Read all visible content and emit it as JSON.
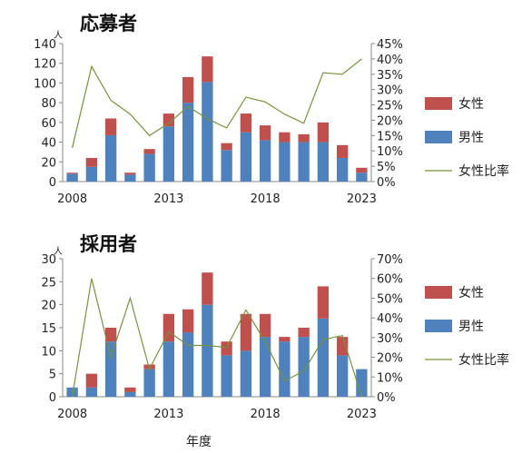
{
  "chart_data": [
    {
      "type": "bar",
      "stacked": true,
      "title": "応募者",
      "y_unit": "人",
      "x": [
        2008,
        2009,
        2010,
        2011,
        2012,
        2013,
        2014,
        2015,
        2016,
        2017,
        2018,
        2019,
        2020,
        2021,
        2022,
        2023
      ],
      "x_ticks": [
        2008,
        2013,
        2018,
        2023
      ],
      "ylim": [
        0,
        140
      ],
      "y_ticks": [
        0,
        20,
        40,
        60,
        80,
        100,
        120,
        140
      ],
      "y2lim": [
        0,
        0.45
      ],
      "y2_ticks": [
        "0%",
        "5%",
        "10%",
        "15%",
        "20%",
        "25%",
        "30%",
        "35%",
        "40%",
        "45%"
      ],
      "series": [
        {
          "name": "男性",
          "axis": "left",
          "values": [
            8,
            15,
            47,
            7,
            28,
            56,
            80,
            101,
            32,
            50,
            42,
            40,
            40,
            40,
            24,
            9
          ],
          "color": "#4f81bd"
        },
        {
          "name": "女性",
          "axis": "left",
          "values": [
            1,
            9,
            17,
            2,
            5,
            13,
            26,
            26,
            7,
            19,
            15,
            10,
            8,
            20,
            13,
            5
          ],
          "color": "#c0504d"
        },
        {
          "name": "女性比率",
          "axis": "right",
          "type": "line",
          "values": [
            0.11,
            0.375,
            0.265,
            0.22,
            0.15,
            0.19,
            0.245,
            0.205,
            0.175,
            0.275,
            0.26,
            0.22,
            0.19,
            0.355,
            0.35,
            0.4
          ],
          "color": "#77933c"
        }
      ]
    },
    {
      "type": "bar",
      "stacked": true,
      "title": "採用者",
      "y_unit": "人",
      "xlabel": "年度",
      "x": [
        2008,
        2009,
        2010,
        2011,
        2012,
        2013,
        2014,
        2015,
        2016,
        2017,
        2018,
        2019,
        2020,
        2021,
        2022,
        2023
      ],
      "x_ticks": [
        2008,
        2013,
        2018,
        2023
      ],
      "ylim": [
        0,
        30
      ],
      "y_ticks": [
        0,
        5,
        10,
        15,
        20,
        25,
        30
      ],
      "y2lim": [
        0,
        0.7
      ],
      "y2_ticks": [
        "0%",
        "10%",
        "20%",
        "30%",
        "40%",
        "50%",
        "60%",
        "70%"
      ],
      "series": [
        {
          "name": "男性",
          "axis": "left",
          "values": [
            2,
            2,
            12,
            1,
            6,
            12,
            14,
            20,
            9,
            10,
            13,
            12,
            13,
            17,
            9,
            6
          ],
          "color": "#4f81bd"
        },
        {
          "name": "女性",
          "axis": "left",
          "values": [
            0,
            3,
            3,
            1,
            1,
            6,
            5,
            7,
            3,
            8,
            5,
            1,
            2,
            7,
            4,
            0
          ],
          "color": "#c0504d"
        },
        {
          "name": "女性比率",
          "axis": "right",
          "type": "line",
          "values": [
            0.0,
            0.6,
            0.2,
            0.5,
            0.14,
            0.33,
            0.26,
            0.26,
            0.25,
            0.44,
            0.28,
            0.08,
            0.13,
            0.29,
            0.31,
            0.0
          ],
          "color": "#77933c"
        }
      ]
    }
  ],
  "legend": {
    "female": "女性",
    "male": "男性",
    "ratio": "女性比率"
  }
}
